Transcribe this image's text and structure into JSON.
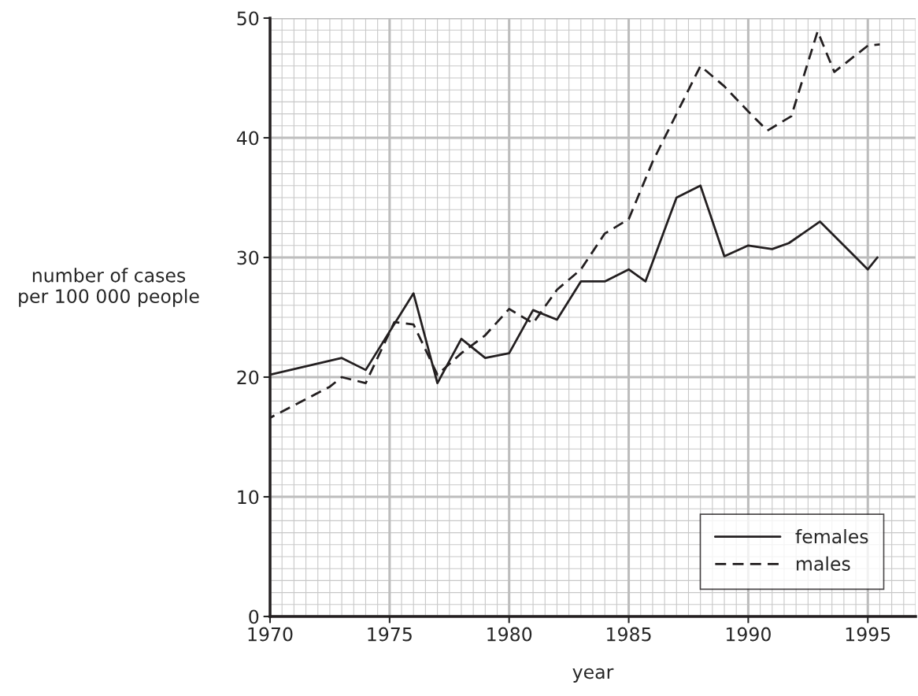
{
  "chart_data": {
    "type": "line",
    "xlabel": "year",
    "ylabel": "number of cases\nper 100 000 people",
    "xlim": [
      1970,
      1997
    ],
    "ylim": [
      0,
      50
    ],
    "xticks": [
      1970,
      1975,
      1980,
      1985,
      1990,
      1995
    ],
    "yticks": [
      0,
      10,
      20,
      30,
      40,
      50
    ],
    "grid": true,
    "legend": "lower right",
    "marker": "none",
    "series": [
      {
        "name": "females",
        "color": "#231f20",
        "line_style": "solid",
        "x": [
          1970,
          1973,
          1974,
          1976,
          1977,
          1978,
          1979,
          1980,
          1981,
          1982,
          1983,
          1984,
          1985,
          1985.7,
          1987,
          1988,
          1989,
          1990,
          1991,
          1991.7,
          1993,
          1994.5,
          1995,
          1995.4
        ],
        "values": [
          20.2,
          21.6,
          20.6,
          27,
          19.5,
          23.2,
          21.6,
          22,
          25.6,
          24.8,
          28,
          28,
          29,
          28,
          35,
          36,
          30.1,
          31,
          30.7,
          31.2,
          33,
          30,
          29,
          30
        ]
      },
      {
        "name": "males",
        "color": "#231f20",
        "line_style": "dashed",
        "x": [
          1970,
          1972.5,
          1973,
          1974,
          1975.2,
          1976,
          1977,
          1978,
          1979,
          1980,
          1981,
          1982,
          1983,
          1984,
          1985,
          1986,
          1988,
          1989,
          1990,
          1990.8,
          1991.8,
          1992.9,
          1993.6,
          1995,
          1995.5
        ],
        "values": [
          16.6,
          19.2,
          20,
          19.5,
          24.6,
          24.4,
          20.2,
          22,
          23.5,
          25.7,
          24.5,
          27.3,
          29,
          32,
          33.2,
          38,
          46,
          44.3,
          42.2,
          40.6,
          41.8,
          48.9,
          45.5,
          47.7,
          47.8
        ]
      }
    ]
  }
}
